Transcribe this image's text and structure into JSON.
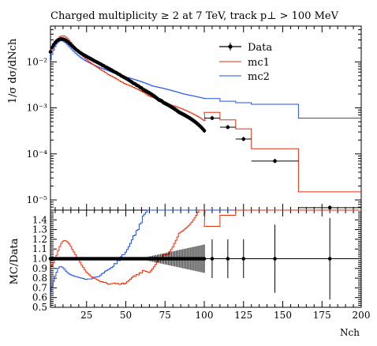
{
  "chart_data": {
    "type": "line",
    "title": "Charged multiplicity ≥ 2 at 7 TeV, track p⊥ > 100 MeV",
    "legend": {
      "placement": "top-right",
      "entries": [
        {
          "name": "Data",
          "color": "#000000",
          "style": "points"
        },
        {
          "name": "mc1",
          "color": "#e03010",
          "style": "step"
        },
        {
          "name": "mc2",
          "color": "#2050e0",
          "style": "step"
        }
      ]
    },
    "main_panel": {
      "ylabel": "1/σ dσ/dNch",
      "yscale": "log",
      "ylim": [
        6e-06,
        0.06
      ],
      "ytick_labels": [
        {
          "value": 0.01,
          "label": "10⁻²"
        },
        {
          "value": 0.001,
          "label": "10⁻³"
        },
        {
          "value": 0.0001,
          "label": "10⁻⁴"
        },
        {
          "value": 1e-05,
          "label": "10⁻⁵"
        }
      ]
    },
    "ratio_panel": {
      "ylabel": "MC/Data",
      "ylim": [
        0.5,
        1.5
      ],
      "ytick_labels": [
        "0.5",
        "0.6",
        "0.7",
        "0.8",
        "0.9",
        "1.0",
        "1.1",
        "1.2",
        "1.3",
        "1.4"
      ]
    },
    "xlabel": "Nch",
    "xlim": [
      2,
      200
    ],
    "xtick_labels": [
      "25",
      "50",
      "75",
      "100",
      "125",
      "150",
      "175",
      "200"
    ],
    "data_points_nch_2_to_100": [
      0.0165,
      0.0205,
      0.0235,
      0.0262,
      0.0285,
      0.03,
      0.0311,
      0.0315,
      0.0312,
      0.0303,
      0.029,
      0.0273,
      0.0255,
      0.0237,
      0.022,
      0.0204,
      0.019,
      0.0178,
      0.0167,
      0.0158,
      0.015,
      0.0143,
      0.0137,
      0.0131,
      0.0125,
      0.012,
      0.0115,
      0.011,
      0.0105,
      0.0101,
      0.0097,
      0.0093,
      0.0089,
      0.0085,
      0.0082,
      0.0078,
      0.0075,
      0.0072,
      0.0069,
      0.0066,
      0.0063,
      0.006,
      0.0058,
      0.0055,
      0.0053,
      0.005,
      0.0048,
      0.0046,
      0.0044,
      0.0042,
      0.004,
      0.0038,
      0.0036,
      0.0034,
      0.0033,
      0.0031,
      0.003,
      0.0028,
      0.0027,
      0.0025,
      0.0024,
      0.0023,
      0.0022,
      0.0021,
      0.002,
      0.0019,
      0.0018,
      0.0017,
      0.0016,
      0.0015,
      0.00145,
      0.0014,
      0.0013,
      0.00125,
      0.0012,
      0.00115,
      0.0011,
      0.00105,
      0.001,
      0.00095,
      0.0009,
      0.00085,
      0.0008,
      0.00077,
      0.00074,
      0.00071,
      0.00068,
      0.00065,
      0.00062,
      0.00059,
      0.00056,
      0.00053,
      0.0005,
      0.00047,
      0.00044,
      0.00041,
      0.00038,
      0.00035,
      0.00032
    ],
    "data_wide_bins": [
      {
        "x": [
          100,
          110
        ],
        "y": 0.0006
      },
      {
        "x": [
          110,
          120
        ],
        "y": 0.00038
      },
      {
        "x": [
          120,
          130
        ],
        "y": 0.00021
      },
      {
        "x": [
          130,
          160
        ],
        "y": 7e-05
      },
      {
        "x": [
          160,
          200
        ],
        "y": 6.8e-06
      }
    ],
    "mc1_nch_2_to_100": [
      0.0155,
      0.019,
      0.0225,
      0.026,
      0.0295,
      0.0325,
      0.035,
      0.0365,
      0.0368,
      0.036,
      0.0343,
      0.032,
      0.0294,
      0.0267,
      0.0241,
      0.0218,
      0.0198,
      0.018,
      0.0165,
      0.0152,
      0.014,
      0.013,
      0.0121,
      0.0113,
      0.0106,
      0.01,
      0.0094,
      0.0089,
      0.0084,
      0.008,
      0.0076,
      0.0072,
      0.0068,
      0.0065,
      0.0062,
      0.0059,
      0.0056,
      0.0053,
      0.0051,
      0.0049,
      0.0047,
      0.0045,
      0.0043,
      0.0041,
      0.0039,
      0.0037,
      0.0036,
      0.0034,
      0.0033,
      0.0032,
      0.0031,
      0.003,
      0.0029,
      0.0028,
      0.0027,
      0.0026,
      0.0025,
      0.0024,
      0.0023,
      0.0022,
      0.0021,
      0.002,
      0.0019,
      0.0018,
      0.00175,
      0.0017,
      0.00165,
      0.0016,
      0.00155,
      0.0015,
      0.00145,
      0.0014,
      0.00135,
      0.0013,
      0.00125,
      0.0012,
      0.00118,
      0.00115,
      0.00112,
      0.0011,
      0.00107,
      0.00104,
      0.00101,
      0.00098,
      0.00095,
      0.00092,
      0.00089,
      0.00086,
      0.00083,
      0.0008,
      0.00077,
      0.00074,
      0.00071,
      0.00068,
      0.00065,
      0.00062,
      0.00059,
      0.00056,
      0.00053
    ],
    "mc1_wide_bins": [
      {
        "x": [
          100,
          110
        ],
        "y": 0.0008
      },
      {
        "x": [
          110,
          120
        ],
        "y": 0.00055
      },
      {
        "x": [
          120,
          130
        ],
        "y": 0.00035
      },
      {
        "x": [
          130,
          160
        ],
        "y": 0.00013
      },
      {
        "x": [
          160,
          200
        ],
        "y": 1.5e-05
      }
    ],
    "mc2_nch_2_to_100": [
      0.011,
      0.0145,
      0.018,
      0.0215,
      0.0245,
      0.027,
      0.0285,
      0.0289,
      0.0283,
      0.027,
      0.0253,
      0.0234,
      0.0215,
      0.0198,
      0.0182,
      0.0168,
      0.0155,
      0.0145,
      0.0135,
      0.0127,
      0.012,
      0.0114,
      0.0108,
      0.0103,
      0.0099,
      0.0095,
      0.0091,
      0.0088,
      0.0085,
      0.0082,
      0.0079,
      0.0076,
      0.0074,
      0.0072,
      0.007,
      0.0068,
      0.0066,
      0.0064,
      0.0062,
      0.006,
      0.0058,
      0.0057,
      0.0055,
      0.0054,
      0.0052,
      0.0051,
      0.005,
      0.0048,
      0.0047,
      0.0046,
      0.0045,
      0.0044,
      0.0043,
      0.0042,
      0.0041,
      0.004,
      0.0039,
      0.0038,
      0.0037,
      0.0036,
      0.0035,
      0.0034,
      0.0033,
      0.0032,
      0.0031,
      0.003,
      0.00295,
      0.0029,
      0.00285,
      0.0028,
      0.00275,
      0.0027,
      0.00265,
      0.0026,
      0.00255,
      0.0025,
      0.00245,
      0.0024,
      0.00235,
      0.0023,
      0.00225,
      0.0022,
      0.00215,
      0.0021,
      0.00205,
      0.002,
      0.00197,
      0.00194,
      0.00191,
      0.00188,
      0.00185,
      0.00182,
      0.00179,
      0.00176,
      0.00173,
      0.0017,
      0.00167,
      0.00164,
      0.00161
    ],
    "mc2_wide_bins": [
      {
        "x": [
          100,
          110
        ],
        "y": 0.0016
      },
      {
        "x": [
          110,
          120
        ],
        "y": 0.0014
      },
      {
        "x": [
          120,
          130
        ],
        "y": 0.0013
      },
      {
        "x": [
          130,
          160
        ],
        "y": 0.0012
      },
      {
        "x": [
          160,
          200
        ],
        "y": 0.0006
      }
    ]
  }
}
